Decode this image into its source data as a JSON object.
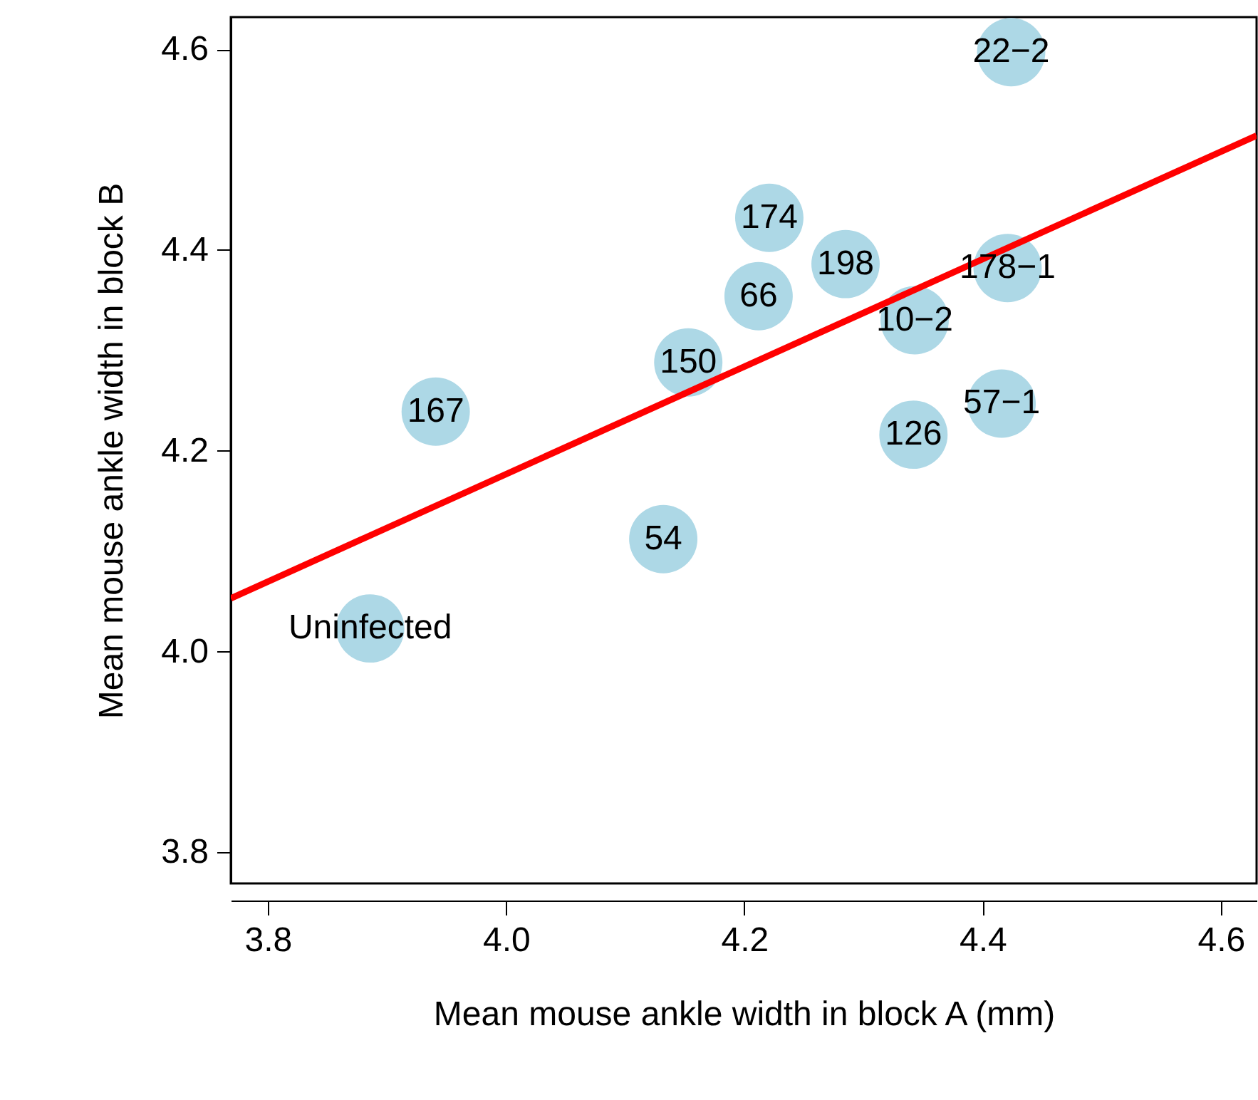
{
  "chart_data": {
    "type": "scatter",
    "xlabel": "Mean mouse ankle width in block A (mm)",
    "ylabel": "Mean mouse ankle width in block B",
    "xlim": [
      3.769,
      4.63
    ],
    "ylim": [
      3.769,
      4.632
    ],
    "xticks": [
      3.8,
      {
        "value": 4,
        "label": "4.0"
      },
      4.2,
      4.4,
      4.6
    ],
    "yticks": [
      3.8,
      {
        "value": 4,
        "label": "4.0"
      },
      4.2,
      4.4,
      4.6
    ],
    "grid": false,
    "series": [
      {
        "type": "scatter",
        "color": "#add8e6",
        "marker": "circle",
        "x": [
          3.886,
          3.941,
          4.132,
          4.153,
          4.212,
          4.221,
          4.285,
          4.343,
          4.342,
          4.416,
          4.421,
          4.424
        ],
        "values": [
          4.023,
          4.239,
          4.112,
          4.288,
          4.354,
          4.432,
          4.386,
          4.33,
          4.216,
          4.247,
          4.382,
          4.597
        ]
      },
      {
        "type": "line",
        "color": "#ff0000",
        "line_style": "solid",
        "x": [
          3.769,
          4.63
        ],
        "values": [
          4.053,
          4.514
        ]
      }
    ],
    "annotations": [
      {
        "text": "Uninfected",
        "x": 3.886,
        "y": 4.023
      },
      {
        "text": "167",
        "x": 3.941,
        "y": 4.239
      },
      {
        "text": "54",
        "x": 4.132,
        "y": 4.112
      },
      {
        "text": "150",
        "x": 4.153,
        "y": 4.288
      },
      {
        "text": "66",
        "x": 4.212,
        "y": 4.354
      },
      {
        "text": "174",
        "x": 4.221,
        "y": 4.432
      },
      {
        "text": "198",
        "x": 4.285,
        "y": 4.386
      },
      {
        "text": "10−2",
        "x": 4.343,
        "y": 4.33
      },
      {
        "text": "126",
        "x": 4.342,
        "y": 4.216
      },
      {
        "text": "57−1",
        "x": 4.416,
        "y": 4.247
      },
      {
        "text": "178−1",
        "x": 4.421,
        "y": 4.382
      },
      {
        "text": "22−2",
        "x": 4.424,
        "y": 4.597
      }
    ]
  }
}
